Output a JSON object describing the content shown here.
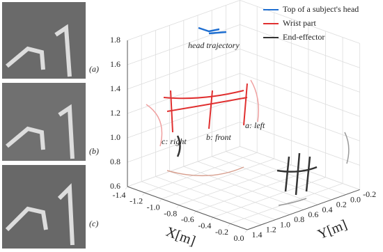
{
  "chart_data": {
    "type": "line3d",
    "xlabel": "X[m]",
    "ylabel": "Y[m]",
    "xlim": [
      -1.4,
      0
    ],
    "ylim": [
      -0.2,
      1.4
    ],
    "zlim": [
      0.6,
      1.8
    ],
    "xticks": [
      -1.4,
      -1.2,
      {
        "value": -1,
        "label": "-1.0"
      },
      -0.8,
      -0.6,
      -0.4,
      -0.2,
      {
        "value": 0,
        "label": "0.0"
      }
    ],
    "yticks": [
      -0.2,
      {
        "value": 0,
        "label": "0.0"
      },
      0.2,
      0.4,
      0.6,
      0.8,
      {
        "value": 1,
        "label": "1.0"
      },
      1.2,
      1.4
    ],
    "zticks": [
      0.6,
      0.8,
      {
        "value": 1,
        "label": "1.0"
      },
      1.2,
      1.4,
      1.6,
      1.8
    ],
    "grid": true,
    "series": [
      {
        "name": "Top of a subject's head",
        "color": "#1f6fd1"
      },
      {
        "name": "Wrist part",
        "color": "#e03030"
      },
      {
        "name": "End-effector",
        "color": "#333333"
      }
    ],
    "annotations": [
      "head trajectory",
      "a: left",
      "b: front",
      "c: right"
    ],
    "panel_labels": [
      "(a)",
      "(b)",
      "(c)"
    ]
  }
}
